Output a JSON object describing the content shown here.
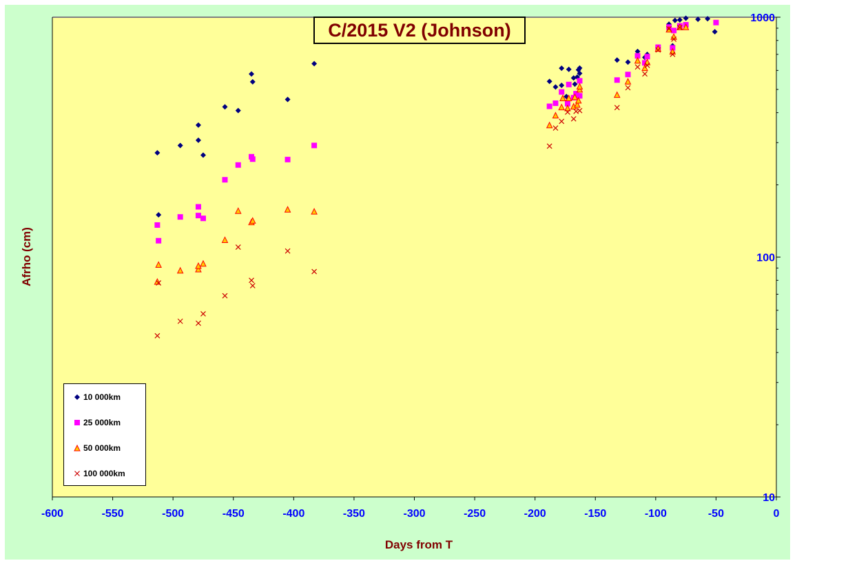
{
  "colors": {
    "outer_bg": "#ccffcc",
    "plot_bg": "#ffff99",
    "axis_label_color": "#800000",
    "tick_label_color": "#0000ff",
    "series_10000": "#000080",
    "series_25000": "#ff00ff",
    "series_50000": "#ff0000",
    "series_100000": "#cc0000"
  },
  "chart_data": {
    "type": "scatter",
    "title": "C/2015 V2 (Johnson)",
    "xlabel": "Days from T",
    "ylabel": "Afrho (cm)",
    "xlim": [
      -600,
      0
    ],
    "ylim": [
      10,
      1000
    ],
    "y_scale": "log",
    "y_axis_position": "right",
    "grid": false,
    "legend_position": "bottom-left",
    "x_ticks": [
      "-600",
      "-550",
      "-500",
      "-450",
      "-400",
      "-350",
      "-300",
      "-250",
      "-200",
      "-150",
      "-100",
      "-50",
      "0"
    ],
    "y_ticks": [
      "10",
      "100",
      "1000"
    ],
    "series": [
      {
        "name": "10 000km",
        "marker": "diamond",
        "points": [
          [
            -513,
            272
          ],
          [
            -512,
            150
          ],
          [
            -494,
            292
          ],
          [
            -479,
            355
          ],
          [
            -479,
            307
          ],
          [
            -475,
            266
          ],
          [
            -457,
            423
          ],
          [
            -446,
            408
          ],
          [
            -435,
            580
          ],
          [
            -434,
            538
          ],
          [
            -405,
            454
          ],
          [
            -383,
            640
          ],
          [
            -188,
            540
          ],
          [
            -183,
            512
          ],
          [
            -178,
            520
          ],
          [
            -178,
            613
          ],
          [
            -174,
            467
          ],
          [
            -172,
            606
          ],
          [
            -168,
            558
          ],
          [
            -167,
            526
          ],
          [
            -165,
            563
          ],
          [
            -164,
            603
          ],
          [
            -163,
            583
          ],
          [
            -163,
            614
          ],
          [
            -132,
            663
          ],
          [
            -123,
            650
          ],
          [
            -115,
            720
          ],
          [
            -109,
            680
          ],
          [
            -107,
            700
          ],
          [
            -98,
            745
          ],
          [
            -89,
            935
          ],
          [
            -86,
            760
          ],
          [
            -84,
            970
          ],
          [
            -80,
            975
          ],
          [
            -75,
            990
          ],
          [
            -65,
            980
          ],
          [
            -57,
            985
          ],
          [
            -51,
            870
          ]
        ]
      },
      {
        "name": "25 000km",
        "marker": "square",
        "points": [
          [
            -513,
            136
          ],
          [
            -512,
            117
          ],
          [
            -494,
            147
          ],
          [
            -479,
            162
          ],
          [
            -479,
            149
          ],
          [
            -475,
            145
          ],
          [
            -457,
            210
          ],
          [
            -446,
            242
          ],
          [
            -435,
            262
          ],
          [
            -434,
            256
          ],
          [
            -405,
            255
          ],
          [
            -383,
            292
          ],
          [
            -188,
            425
          ],
          [
            -183,
            438
          ],
          [
            -178,
            488
          ],
          [
            -173,
            436
          ],
          [
            -172,
            524
          ],
          [
            -168,
            462
          ],
          [
            -166,
            480
          ],
          [
            -165,
            470
          ],
          [
            -163,
            470
          ],
          [
            -163,
            543
          ],
          [
            -132,
            547
          ],
          [
            -123,
            577
          ],
          [
            -115,
            690
          ],
          [
            -109,
            645
          ],
          [
            -107,
            685
          ],
          [
            -98,
            750
          ],
          [
            -89,
            910
          ],
          [
            -86,
            745
          ],
          [
            -85,
            880
          ],
          [
            -80,
            920
          ],
          [
            -75,
            930
          ],
          [
            -50,
            950
          ]
        ]
      },
      {
        "name": "50 000km",
        "marker": "triangle",
        "points": [
          [
            -513,
            79
          ],
          [
            -512,
            93
          ],
          [
            -494,
            88
          ],
          [
            -479,
            89
          ],
          [
            -479,
            92
          ],
          [
            -475,
            94
          ],
          [
            -457,
            118
          ],
          [
            -446,
            156
          ],
          [
            -435,
            140
          ],
          [
            -434,
            142
          ],
          [
            -405,
            158
          ],
          [
            -383,
            155
          ],
          [
            -188,
            355
          ],
          [
            -183,
            390
          ],
          [
            -178,
            422
          ],
          [
            -177,
            460
          ],
          [
            -173,
            418
          ],
          [
            -172,
            460
          ],
          [
            -168,
            425
          ],
          [
            -167,
            465
          ],
          [
            -165,
            432
          ],
          [
            -164,
            450
          ],
          [
            -163,
            500
          ],
          [
            -163,
            515
          ],
          [
            -132,
            475
          ],
          [
            -123,
            540
          ],
          [
            -115,
            660
          ],
          [
            -109,
            615
          ],
          [
            -107,
            650
          ],
          [
            -98,
            740
          ],
          [
            -89,
            890
          ],
          [
            -86,
            720
          ],
          [
            -85,
            830
          ],
          [
            -80,
            910
          ],
          [
            -75,
            910
          ]
        ]
      },
      {
        "name": "100 000km",
        "marker": "x",
        "points": [
          [
            -513,
            47
          ],
          [
            -512,
            78
          ],
          [
            -494,
            54
          ],
          [
            -479,
            53
          ],
          [
            -475,
            58
          ],
          [
            -457,
            69
          ],
          [
            -446,
            110
          ],
          [
            -435,
            80
          ],
          [
            -434,
            76
          ],
          [
            -405,
            106
          ],
          [
            -383,
            87
          ],
          [
            -188,
            290
          ],
          [
            -183,
            345
          ],
          [
            -178,
            368
          ],
          [
            -173,
            402
          ],
          [
            -168,
            377
          ],
          [
            -166,
            405
          ],
          [
            -163,
            408
          ],
          [
            -132,
            420
          ],
          [
            -123,
            508
          ],
          [
            -115,
            620
          ],
          [
            -109,
            580
          ],
          [
            -107,
            630
          ],
          [
            -98,
            730
          ],
          [
            -89,
            895
          ],
          [
            -86,
            700
          ],
          [
            -85,
            810
          ],
          [
            -80,
            905
          ]
        ]
      }
    ]
  }
}
